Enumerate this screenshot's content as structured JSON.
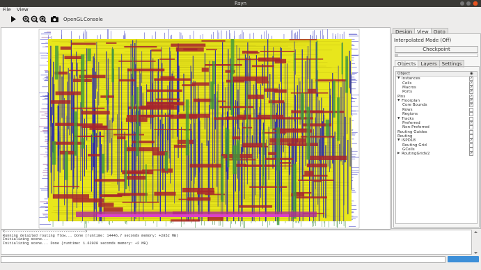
{
  "window": {
    "title": "Rsyn"
  },
  "menu": [
    "File",
    "View"
  ],
  "toolbar": [
    "OpenGL",
    "Console"
  ],
  "panel": {
    "tabs": [
      "Design",
      "View",
      "Opto"
    ],
    "active_tab": 1,
    "mode": "Interpolated Mode (Off)",
    "button": "Checkpoint",
    "subtabs": [
      "Objects",
      "Layers",
      "Settings"
    ],
    "active_subtab": 0,
    "tree_header": "Object",
    "tree": [
      {
        "label": "Instances",
        "checked": true,
        "expanded": true,
        "children": [
          {
            "label": "Cells",
            "checked": true
          },
          {
            "label": "Macros",
            "checked": true
          },
          {
            "label": "Ports",
            "checked": true
          }
        ]
      },
      {
        "label": "Pins",
        "checked": true
      },
      {
        "label": "Floorplan",
        "checked": true,
        "expanded": true,
        "children": [
          {
            "label": "Core Bounds",
            "checked": true
          },
          {
            "label": "Rows",
            "checked": false
          },
          {
            "label": "Regions",
            "checked": false
          }
        ]
      },
      {
        "label": "Tracks",
        "checked": false,
        "expanded": true,
        "children": [
          {
            "label": "Preferred",
            "checked": true
          },
          {
            "label": "Non-Preferred",
            "checked": false
          }
        ]
      },
      {
        "label": "Routing Guides",
        "checked": false
      },
      {
        "label": "Routing",
        "checked": false
      },
      {
        "label": "ISPD18",
        "checked": true,
        "expanded": true,
        "children": [
          {
            "label": "Routing Grid",
            "checked": false
          },
          {
            "label": "GCells",
            "checked": false
          }
        ]
      },
      {
        "label": "RoutingGridV2",
        "checked": true,
        "expanded": false
      }
    ]
  },
  "console": {
    "lines": [
      "<------------------------------------->",
      "Running detailed routing flow... Done (runtime: 14446.7 seconds memory: +2852 MB)",
      "Initializing scene...",
      "Initializing scene... Done (runtime: 1.62028 seconds memory: +2 MB)"
    ]
  }
}
